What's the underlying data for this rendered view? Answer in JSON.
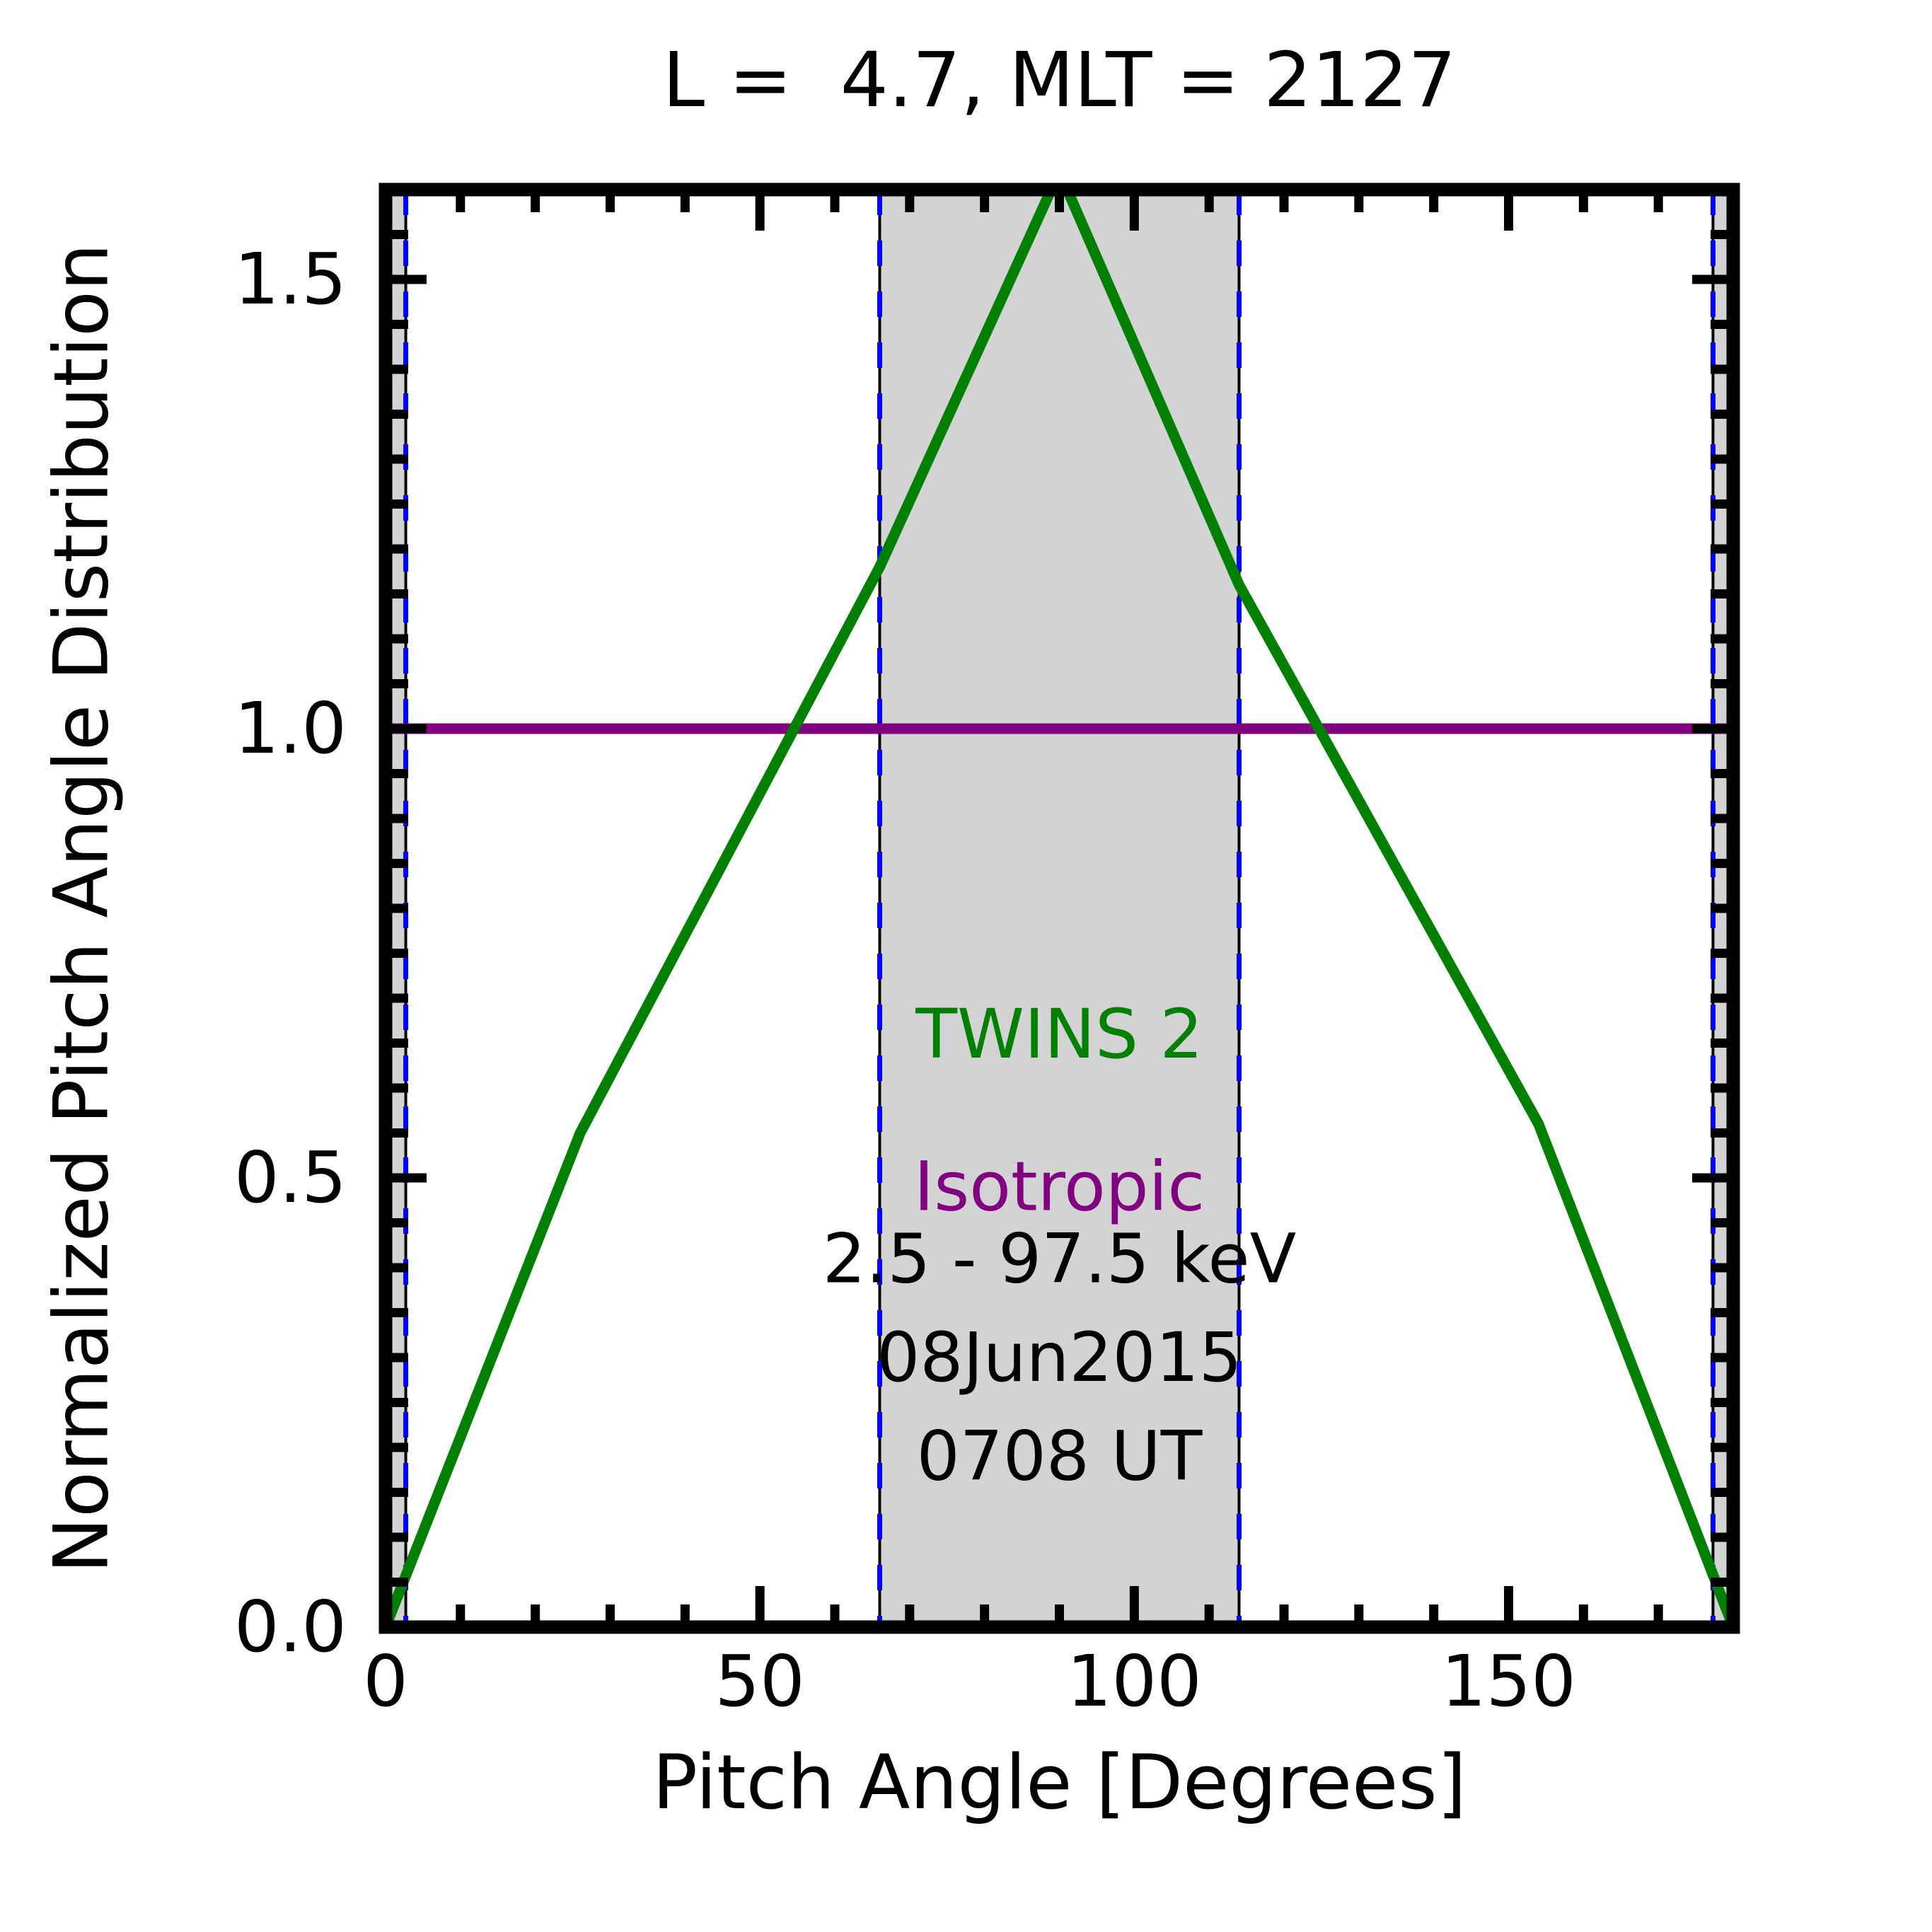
{
  "chart_data": {
    "type": "line",
    "title": "L =  4.7, MLT = 2127",
    "xlabel": "Pitch Angle [Degrees]",
    "ylabel": "Normalized Pitch Angle Distribution",
    "xlim": [
      0,
      180
    ],
    "ylim": [
      0,
      1.6
    ],
    "grid": false,
    "xticks": {
      "major": [
        0,
        50,
        100,
        150
      ],
      "labels": [
        "0",
        "50",
        "100",
        "150"
      ],
      "minor_step": 10
    },
    "yticks": {
      "major": [
        0,
        0.5,
        1.0,
        1.5
      ],
      "labels": [
        "0.0",
        "0.5",
        "1.0",
        "1.5"
      ],
      "minor_step": 0.05
    },
    "series": [
      {
        "name": "Isotropic",
        "color": "#800080",
        "x": [
          0,
          180
        ],
        "y": [
          1.0,
          1.0
        ]
      },
      {
        "name": "TWINS 2",
        "color": "#008000",
        "x": [
          0,
          26,
          66,
          90,
          114,
          154,
          180
        ],
        "y": [
          0.0,
          0.55,
          1.18,
          1.62,
          1.16,
          0.56,
          0.0
        ]
      }
    ],
    "shaded_bands": {
      "color": "#d3d3d3",
      "ranges": [
        [
          0,
          2.7
        ],
        [
          66,
          114
        ],
        [
          177.3,
          180
        ]
      ]
    },
    "vlines": {
      "x": [
        2.7,
        66,
        114,
        177.3
      ],
      "style": "dashed",
      "dash_color": "#0000ff",
      "base_color": "#000000"
    },
    "annotations": [
      {
        "name": "label-twins-2",
        "text": "TWINS 2",
        "color": "#008000",
        "x": 90,
        "y": 0.66
      },
      {
        "name": "label-isotropic",
        "text": "Isotropic",
        "color": "#800080",
        "x": 90,
        "y": 0.49
      },
      {
        "name": "label-energy-range",
        "text": "2.5 - 97.5 keV",
        "color": "#000000",
        "x": 90,
        "y": 0.41
      },
      {
        "name": "label-date",
        "text": "08Jun2015",
        "color": "#000000",
        "x": 90,
        "y": 0.3
      },
      {
        "name": "label-time",
        "text": "0708 UT",
        "color": "#000000",
        "x": 90,
        "y": 0.19
      }
    ]
  }
}
